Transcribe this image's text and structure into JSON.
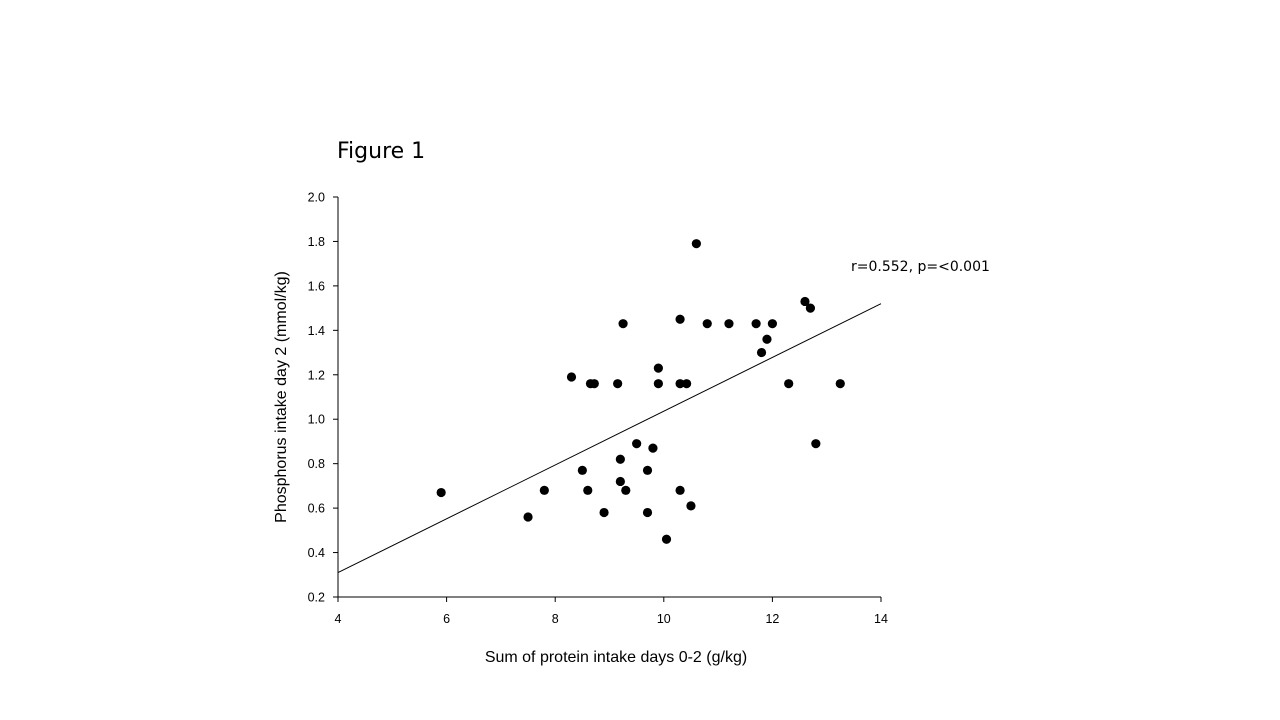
{
  "figure_title": "Figure 1",
  "chart_data": {
    "type": "scatter",
    "title": "",
    "xlabel": "Sum of protein intake days 0-2 (g/kg)",
    "ylabel": "Phosphorus intake day 2 (mmol/kg)",
    "xlim": [
      4,
      14
    ],
    "ylim": [
      0.2,
      2.0
    ],
    "x_ticks": [
      "4",
      "6",
      "8",
      "10",
      "12",
      "14"
    ],
    "y_ticks": [
      "0.2",
      "0.4",
      "0.6",
      "0.8",
      "1.0",
      "1.2",
      "1.4",
      "1.6",
      "1.8",
      "2.0"
    ],
    "grid": false,
    "point_color": "#000000",
    "annotation": "r=0.552, p=<0.001",
    "regression_line": {
      "x": [
        4,
        14
      ],
      "y": [
        0.31,
        1.52
      ]
    },
    "points": [
      {
        "x": 5.9,
        "y": 0.67
      },
      {
        "x": 7.5,
        "y": 0.56
      },
      {
        "x": 7.8,
        "y": 0.68
      },
      {
        "x": 8.3,
        "y": 1.19
      },
      {
        "x": 8.5,
        "y": 0.77
      },
      {
        "x": 8.6,
        "y": 0.68
      },
      {
        "x": 8.65,
        "y": 1.16
      },
      {
        "x": 8.72,
        "y": 1.16
      },
      {
        "x": 8.9,
        "y": 0.58
      },
      {
        "x": 9.15,
        "y": 1.16
      },
      {
        "x": 9.2,
        "y": 0.82
      },
      {
        "x": 9.2,
        "y": 0.72
      },
      {
        "x": 9.25,
        "y": 1.43
      },
      {
        "x": 9.3,
        "y": 0.68
      },
      {
        "x": 9.5,
        "y": 0.89
      },
      {
        "x": 9.7,
        "y": 0.77
      },
      {
        "x": 9.7,
        "y": 0.58
      },
      {
        "x": 9.8,
        "y": 0.87
      },
      {
        "x": 9.9,
        "y": 1.23
      },
      {
        "x": 9.9,
        "y": 1.16
      },
      {
        "x": 10.05,
        "y": 0.46
      },
      {
        "x": 10.3,
        "y": 1.45
      },
      {
        "x": 10.3,
        "y": 1.16
      },
      {
        "x": 10.3,
        "y": 0.68
      },
      {
        "x": 10.42,
        "y": 1.16
      },
      {
        "x": 10.5,
        "y": 0.61
      },
      {
        "x": 10.6,
        "y": 1.79
      },
      {
        "x": 10.8,
        "y": 1.43
      },
      {
        "x": 11.2,
        "y": 1.43
      },
      {
        "x": 11.7,
        "y": 1.43
      },
      {
        "x": 11.8,
        "y": 1.3
      },
      {
        "x": 11.9,
        "y": 1.36
      },
      {
        "x": 12.0,
        "y": 1.43
      },
      {
        "x": 12.3,
        "y": 1.16
      },
      {
        "x": 12.6,
        "y": 1.53
      },
      {
        "x": 12.7,
        "y": 1.5
      },
      {
        "x": 12.8,
        "y": 0.89
      },
      {
        "x": 13.25,
        "y": 1.16
      }
    ]
  }
}
